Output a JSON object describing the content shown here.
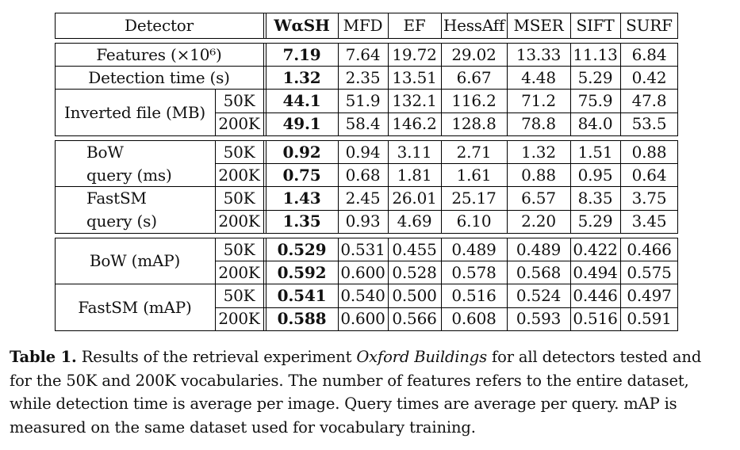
{
  "table": {
    "columns": [
      "Detector",
      "WαSH",
      "MFD",
      "EF",
      "HessAff",
      "MSER",
      "SIFT",
      "SURF"
    ],
    "groups": [
      {
        "rows": [
          {
            "label": "Features (×10⁶)",
            "sub": "",
            "values": [
              "7.19",
              "7.64",
              "19.72",
              "29.02",
              "13.33",
              "11.13",
              "6.84"
            ]
          },
          {
            "label": "Detection time (s)",
            "sub": "",
            "values": [
              "1.32",
              "2.35",
              "13.51",
              "6.67",
              "4.48",
              "5.29",
              "0.42"
            ]
          },
          {
            "label": "Inverted file (MB)",
            "sub": "50K",
            "values": [
              "44.1",
              "51.9",
              "132.1",
              "116.2",
              "71.2",
              "75.9",
              "47.8"
            ]
          },
          {
            "label": "",
            "sub": "200K",
            "values": [
              "49.1",
              "58.4",
              "146.2",
              "128.8",
              "78.8",
              "84.0",
              "53.5"
            ]
          }
        ]
      },
      {
        "rows": [
          {
            "label": "BoW",
            "sub": "50K",
            "values": [
              "0.92",
              "0.94",
              "3.11",
              "2.71",
              "1.32",
              "1.51",
              "0.88"
            ]
          },
          {
            "label": "query (ms)",
            "sub": "200K",
            "values": [
              "0.75",
              "0.68",
              "1.81",
              "1.61",
              "0.88",
              "0.95",
              "0.64"
            ]
          },
          {
            "label": "FastSM",
            "sub": "50K",
            "values": [
              "1.43",
              "2.45",
              "26.01",
              "25.17",
              "6.57",
              "8.35",
              "3.75"
            ]
          },
          {
            "label": "query (s)",
            "sub": "200K",
            "values": [
              "1.35",
              "0.93",
              "4.69",
              "6.10",
              "2.20",
              "5.29",
              "3.45"
            ]
          }
        ]
      },
      {
        "rows": [
          {
            "label": "BoW (mAP)",
            "sub": "50K",
            "values": [
              "0.529",
              "0.531",
              "0.455",
              "0.489",
              "0.489",
              "0.422",
              "0.466"
            ]
          },
          {
            "label": "",
            "sub": "200K",
            "values": [
              "0.592",
              "0.600",
              "0.528",
              "0.578",
              "0.568",
              "0.494",
              "0.575"
            ]
          },
          {
            "label": "FastSM (mAP)",
            "sub": "50K",
            "values": [
              "0.541",
              "0.540",
              "0.500",
              "0.516",
              "0.524",
              "0.446",
              "0.497"
            ]
          },
          {
            "label": "",
            "sub": "200K",
            "values": [
              "0.588",
              "0.600",
              "0.566",
              "0.608",
              "0.593",
              "0.516",
              "0.591"
            ]
          }
        ]
      }
    ]
  },
  "caption": {
    "label": "Table 1.",
    "text_before": " Results of the retrieval experiment ",
    "italic": "Oxford Buildings",
    "text_after": " for all detectors tested and for the 50K and 200K vocabularies. The number of features refers to the entire dataset, while detection time is average per image. Query times are average per query. mAP is measured on the same dataset used for vocabulary training."
  }
}
